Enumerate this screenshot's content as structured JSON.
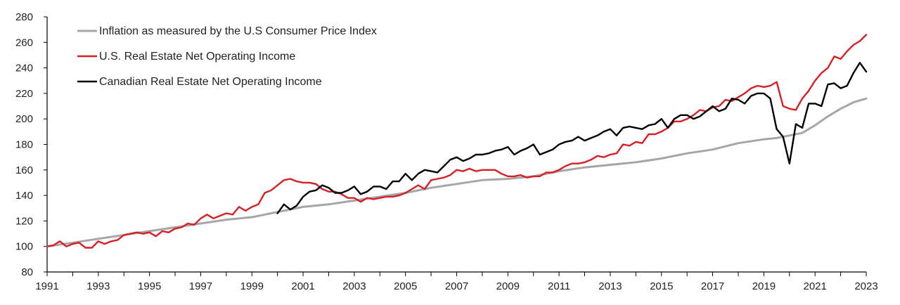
{
  "chart_data": {
    "type": "line",
    "title": "",
    "xlabel": "",
    "ylabel": "",
    "xlim": [
      1991,
      2023
    ],
    "ylim": [
      80,
      280
    ],
    "x_ticks": [
      1991,
      1993,
      1995,
      1997,
      1999,
      2001,
      2003,
      2005,
      2007,
      2009,
      2011,
      2013,
      2015,
      2017,
      2019,
      2021,
      2023
    ],
    "x_tick_labels": [
      "1991",
      "1993",
      "1995",
      "1997",
      "1999",
      "2001",
      "2003",
      "2005",
      "2007",
      "2009",
      "2011",
      "2013",
      "2015",
      "2017",
      "2019",
      "2021",
      "2023"
    ],
    "y_ticks": [
      80,
      100,
      120,
      140,
      160,
      180,
      200,
      220,
      240,
      260,
      280
    ],
    "y_tick_labels": [
      "80",
      "100",
      "120",
      "140",
      "160",
      "180",
      "200",
      "220",
      "240",
      "260",
      "280"
    ],
    "grid": false,
    "legend_position": "top-left",
    "series": [
      {
        "name": "Inflation as measured by the U.S Consumer Price Index",
        "color": "#a6a6a6",
        "points": [
          [
            1991,
            100
          ],
          [
            1992,
            103
          ],
          [
            1993,
            106
          ],
          [
            1994,
            109
          ],
          [
            1995,
            112
          ],
          [
            1996,
            115
          ],
          [
            1997,
            118
          ],
          [
            1998,
            121
          ],
          [
            1999,
            123
          ],
          [
            2000,
            127
          ],
          [
            2001,
            131
          ],
          [
            2002,
            133
          ],
          [
            2003,
            136
          ],
          [
            2004,
            139
          ],
          [
            2005,
            142
          ],
          [
            2006,
            146
          ],
          [
            2007,
            149
          ],
          [
            2008,
            152
          ],
          [
            2009,
            153
          ],
          [
            2010,
            155
          ],
          [
            2011,
            159
          ],
          [
            2012,
            162
          ],
          [
            2013,
            164
          ],
          [
            2014,
            166
          ],
          [
            2015,
            169
          ],
          [
            2016,
            173
          ],
          [
            2017,
            176
          ],
          [
            2018,
            181
          ],
          [
            2019,
            184
          ],
          [
            2019.5,
            185
          ],
          [
            2020,
            187
          ],
          [
            2020.5,
            189
          ],
          [
            2021,
            195
          ],
          [
            2021.5,
            202
          ],
          [
            2022,
            208
          ],
          [
            2022.5,
            213
          ],
          [
            2023,
            216
          ]
        ]
      },
      {
        "name": "U.S. Real Estate Net Operating Income",
        "color": "#d71f26",
        "points": [
          [
            1991,
            100
          ],
          [
            1991.25,
            101
          ],
          [
            1991.5,
            104
          ],
          [
            1991.75,
            100
          ],
          [
            1992,
            102
          ],
          [
            1992.25,
            103
          ],
          [
            1992.5,
            99
          ],
          [
            1992.75,
            99
          ],
          [
            1993,
            104
          ],
          [
            1993.25,
            102
          ],
          [
            1993.5,
            104
          ],
          [
            1993.75,
            105
          ],
          [
            1994,
            109
          ],
          [
            1994.25,
            110
          ],
          [
            1994.5,
            111
          ],
          [
            1994.75,
            110
          ],
          [
            1995,
            111
          ],
          [
            1995.25,
            108
          ],
          [
            1995.5,
            112
          ],
          [
            1995.75,
            111
          ],
          [
            1996,
            114
          ],
          [
            1996.25,
            115
          ],
          [
            1996.5,
            118
          ],
          [
            1996.75,
            117
          ],
          [
            1997,
            122
          ],
          [
            1997.25,
            125
          ],
          [
            1997.5,
            122
          ],
          [
            1997.75,
            124
          ],
          [
            1998,
            126
          ],
          [
            1998.25,
            125
          ],
          [
            1998.5,
            131
          ],
          [
            1998.75,
            128
          ],
          [
            1999,
            131
          ],
          [
            1999.25,
            133
          ],
          [
            1999.5,
            142
          ],
          [
            1999.75,
            144
          ],
          [
            2000,
            148
          ],
          [
            2000.25,
            152
          ],
          [
            2000.5,
            153
          ],
          [
            2000.75,
            151
          ],
          [
            2001,
            150
          ],
          [
            2001.25,
            150
          ],
          [
            2001.5,
            149
          ],
          [
            2001.75,
            145
          ],
          [
            2002,
            143
          ],
          [
            2002.25,
            143
          ],
          [
            2002.5,
            141
          ],
          [
            2002.75,
            138
          ],
          [
            2003,
            138
          ],
          [
            2003.25,
            135
          ],
          [
            2003.5,
            138
          ],
          [
            2003.75,
            137
          ],
          [
            2004,
            138
          ],
          [
            2004.25,
            139
          ],
          [
            2004.5,
            139
          ],
          [
            2004.75,
            140
          ],
          [
            2005,
            142
          ],
          [
            2005.25,
            145
          ],
          [
            2005.5,
            148
          ],
          [
            2005.75,
            145
          ],
          [
            2006,
            152
          ],
          [
            2006.25,
            153
          ],
          [
            2006.5,
            154
          ],
          [
            2006.75,
            156
          ],
          [
            2007,
            160
          ],
          [
            2007.25,
            159
          ],
          [
            2007.5,
            161
          ],
          [
            2007.75,
            159
          ],
          [
            2008,
            160
          ],
          [
            2008.25,
            160
          ],
          [
            2008.5,
            160
          ],
          [
            2008.75,
            157
          ],
          [
            2009,
            155
          ],
          [
            2009.25,
            155
          ],
          [
            2009.5,
            156
          ],
          [
            2009.75,
            154
          ],
          [
            2010,
            155
          ],
          [
            2010.25,
            155
          ],
          [
            2010.5,
            158
          ],
          [
            2010.75,
            158
          ],
          [
            2011,
            160
          ],
          [
            2011.25,
            163
          ],
          [
            2011.5,
            165
          ],
          [
            2011.75,
            165
          ],
          [
            2012,
            166
          ],
          [
            2012.25,
            168
          ],
          [
            2012.5,
            171
          ],
          [
            2012.75,
            170
          ],
          [
            2013,
            172
          ],
          [
            2013.25,
            173
          ],
          [
            2013.5,
            180
          ],
          [
            2013.75,
            179
          ],
          [
            2014,
            182
          ],
          [
            2014.25,
            181
          ],
          [
            2014.5,
            188
          ],
          [
            2014.75,
            188
          ],
          [
            2015,
            190
          ],
          [
            2015.25,
            193
          ],
          [
            2015.5,
            198
          ],
          [
            2015.75,
            198
          ],
          [
            2016,
            200
          ],
          [
            2016.25,
            203
          ],
          [
            2016.5,
            207
          ],
          [
            2016.75,
            206
          ],
          [
            2017,
            209
          ],
          [
            2017.25,
            210
          ],
          [
            2017.5,
            215
          ],
          [
            2017.75,
            214
          ],
          [
            2018,
            217
          ],
          [
            2018.25,
            220
          ],
          [
            2018.5,
            224
          ],
          [
            2018.75,
            226
          ],
          [
            2019,
            225
          ],
          [
            2019.25,
            226
          ],
          [
            2019.5,
            229
          ],
          [
            2019.75,
            210
          ],
          [
            2020,
            208
          ],
          [
            2020.25,
            207
          ],
          [
            2020.5,
            216
          ],
          [
            2020.75,
            222
          ],
          [
            2021,
            230
          ],
          [
            2021.25,
            236
          ],
          [
            2021.5,
            240
          ],
          [
            2021.75,
            249
          ],
          [
            2022,
            247
          ],
          [
            2022.25,
            253
          ],
          [
            2022.5,
            258
          ],
          [
            2022.75,
            261
          ],
          [
            2023,
            266
          ]
        ]
      },
      {
        "name": "Canadian Real Estate Net Operating Income",
        "color": "#000000",
        "points": [
          [
            2000,
            126
          ],
          [
            2000.25,
            133
          ],
          [
            2000.5,
            129
          ],
          [
            2000.75,
            132
          ],
          [
            2001,
            139
          ],
          [
            2001.25,
            143
          ],
          [
            2001.5,
            144
          ],
          [
            2001.75,
            148
          ],
          [
            2002,
            146
          ],
          [
            2002.25,
            142
          ],
          [
            2002.5,
            142
          ],
          [
            2002.75,
            144
          ],
          [
            2003,
            147
          ],
          [
            2003.25,
            141
          ],
          [
            2003.5,
            143
          ],
          [
            2003.75,
            147
          ],
          [
            2004,
            147
          ],
          [
            2004.25,
            145
          ],
          [
            2004.5,
            151
          ],
          [
            2004.75,
            151
          ],
          [
            2005,
            157
          ],
          [
            2005.25,
            152
          ],
          [
            2005.5,
            157
          ],
          [
            2005.75,
            160
          ],
          [
            2006,
            159
          ],
          [
            2006.25,
            158
          ],
          [
            2006.5,
            163
          ],
          [
            2006.75,
            168
          ],
          [
            2007,
            170
          ],
          [
            2007.25,
            167
          ],
          [
            2007.5,
            169
          ],
          [
            2007.75,
            172
          ],
          [
            2008,
            172
          ],
          [
            2008.25,
            173
          ],
          [
            2008.5,
            175
          ],
          [
            2008.75,
            176
          ],
          [
            2009,
            178
          ],
          [
            2009.25,
            172
          ],
          [
            2009.5,
            175
          ],
          [
            2009.75,
            177
          ],
          [
            2010,
            180
          ],
          [
            2010.25,
            172
          ],
          [
            2010.5,
            174
          ],
          [
            2010.75,
            176
          ],
          [
            2011,
            180
          ],
          [
            2011.25,
            182
          ],
          [
            2011.5,
            183
          ],
          [
            2011.75,
            186
          ],
          [
            2012,
            183
          ],
          [
            2012.25,
            185
          ],
          [
            2012.5,
            187
          ],
          [
            2012.75,
            190
          ],
          [
            2013,
            192
          ],
          [
            2013.25,
            187
          ],
          [
            2013.5,
            193
          ],
          [
            2013.75,
            194
          ],
          [
            2014,
            193
          ],
          [
            2014.25,
            192
          ],
          [
            2014.5,
            195
          ],
          [
            2014.75,
            196
          ],
          [
            2015,
            200
          ],
          [
            2015.25,
            193
          ],
          [
            2015.5,
            200
          ],
          [
            2015.75,
            203
          ],
          [
            2016,
            203
          ],
          [
            2016.25,
            200
          ],
          [
            2016.5,
            202
          ],
          [
            2016.75,
            206
          ],
          [
            2017,
            210
          ],
          [
            2017.25,
            206
          ],
          [
            2017.5,
            208
          ],
          [
            2017.75,
            216
          ],
          [
            2018,
            215
          ],
          [
            2018.25,
            212
          ],
          [
            2018.5,
            218
          ],
          [
            2018.75,
            220
          ],
          [
            2019,
            220
          ],
          [
            2019.25,
            216
          ],
          [
            2019.5,
            192
          ],
          [
            2019.75,
            186
          ],
          [
            2020,
            165
          ],
          [
            2020.25,
            196
          ],
          [
            2020.5,
            193
          ],
          [
            2020.75,
            212
          ],
          [
            2021,
            212
          ],
          [
            2021.25,
            210
          ],
          [
            2021.5,
            227
          ],
          [
            2021.75,
            228
          ],
          [
            2022,
            224
          ],
          [
            2022.25,
            226
          ],
          [
            2022.5,
            236
          ],
          [
            2022.75,
            244
          ],
          [
            2023,
            237
          ]
        ]
      }
    ]
  }
}
